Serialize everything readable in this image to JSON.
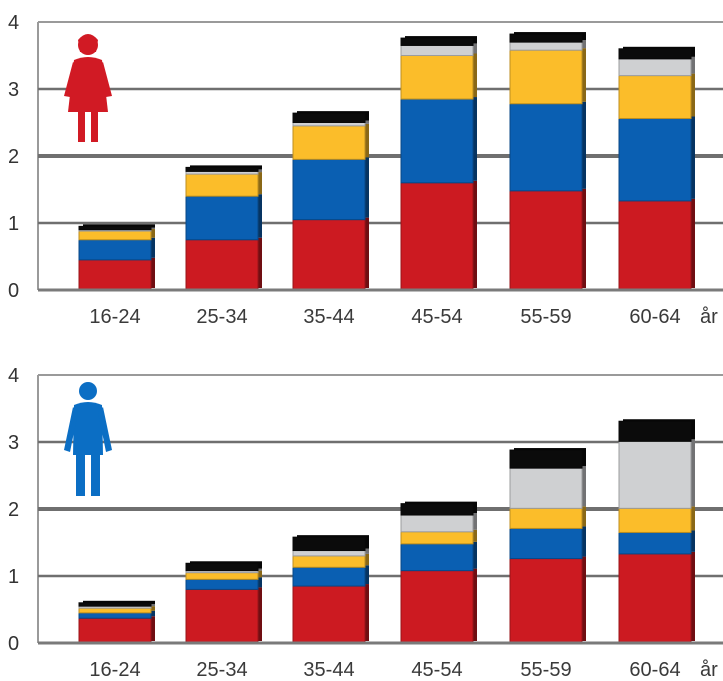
{
  "colors": {
    "red": "#cc1a21",
    "blue": "#0a5fb2",
    "yellow": "#fbbd2a",
    "gray": "#cfd0d2",
    "black": "#0b0b0b",
    "female_icon": "#d11a24",
    "male_icon": "#0b6ec4"
  },
  "chart_data": [
    {
      "type": "bar",
      "stacked": true,
      "icon": "female-figure-icon",
      "categories": [
        "16-24",
        "25-34",
        "35-44",
        "45-54",
        "55-59",
        "60-64"
      ],
      "unit_label": "år",
      "ylim": [
        0,
        4
      ],
      "yticks": [
        "0",
        "1",
        "2",
        "3",
        "4"
      ],
      "grid": true,
      "series": [
        {
          "color": "red",
          "values": [
            0.45,
            0.75,
            1.05,
            1.6,
            1.48,
            1.33
          ]
        },
        {
          "color": "blue",
          "values": [
            0.3,
            0.65,
            0.9,
            1.25,
            1.3,
            1.23
          ]
        },
        {
          "color": "yellow",
          "values": [
            0.13,
            0.33,
            0.5,
            0.65,
            0.8,
            0.64
          ]
        },
        {
          "color": "gray",
          "values": [
            0.02,
            0.04,
            0.05,
            0.15,
            0.12,
            0.25
          ]
        },
        {
          "color": "black",
          "values": [
            0.05,
            0.06,
            0.14,
            0.11,
            0.12,
            0.15
          ]
        }
      ]
    },
    {
      "type": "bar",
      "stacked": true,
      "icon": "male-figure-icon",
      "categories": [
        "16-24",
        "25-34",
        "35-44",
        "45-54",
        "55-59",
        "60-64"
      ],
      "unit_label": "år",
      "ylim": [
        0,
        4
      ],
      "yticks": [
        "0",
        "1",
        "2",
        "3",
        "4"
      ],
      "grid": true,
      "series": [
        {
          "color": "red",
          "values": [
            0.37,
            0.8,
            0.85,
            1.08,
            1.26,
            1.33
          ]
        },
        {
          "color": "blue",
          "values": [
            0.08,
            0.15,
            0.28,
            0.4,
            0.45,
            0.32
          ]
        },
        {
          "color": "yellow",
          "values": [
            0.07,
            0.1,
            0.17,
            0.18,
            0.3,
            0.36
          ]
        },
        {
          "color": "gray",
          "values": [
            0.03,
            0.03,
            0.08,
            0.25,
            0.6,
            1.0
          ]
        },
        {
          "color": "black",
          "values": [
            0.05,
            0.11,
            0.2,
            0.17,
            0.27,
            0.3
          ]
        }
      ]
    }
  ]
}
